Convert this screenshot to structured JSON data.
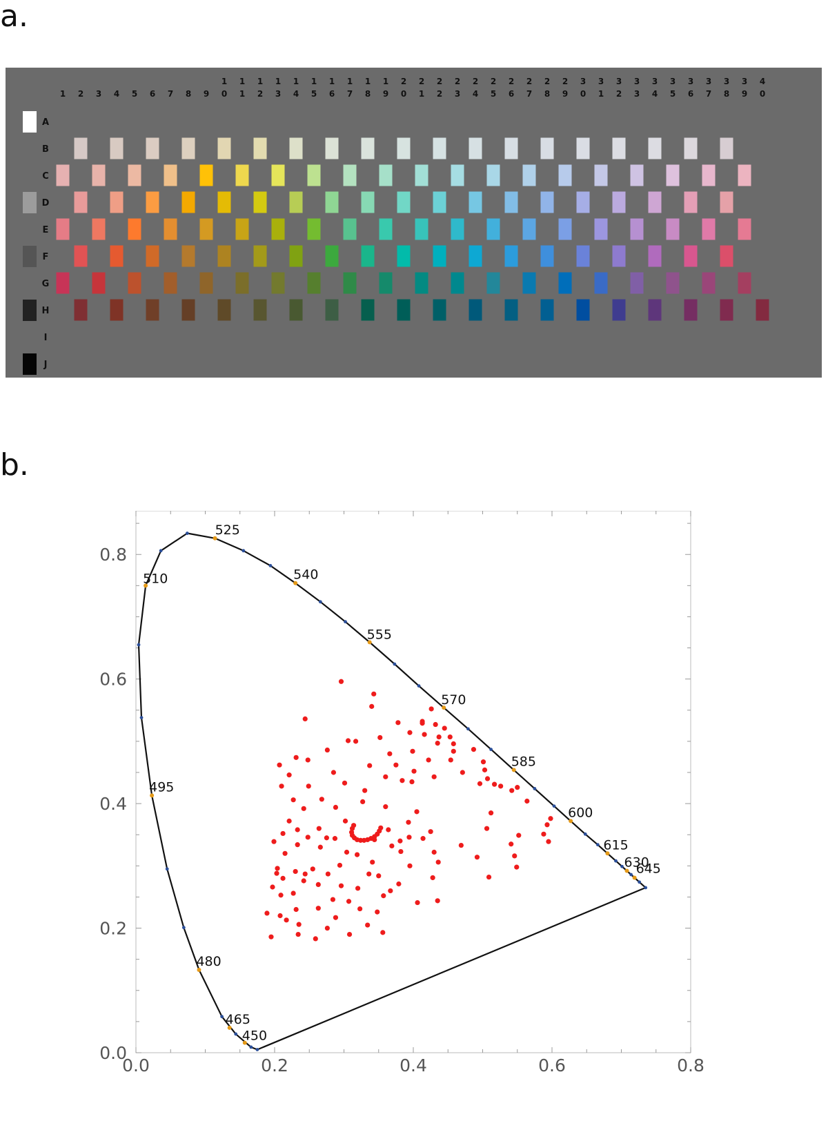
{
  "panel_a_label": "a.",
  "panel_b_label": "b.",
  "munsell_grid": {
    "row_labels": [
      "A",
      "B",
      "C",
      "D",
      "E",
      "F",
      "G",
      "H",
      "I",
      "J"
    ],
    "column_numbers": [
      "1",
      "2",
      "3",
      "4",
      "5",
      "6",
      "7",
      "8",
      "9",
      "10",
      "11",
      "12",
      "13",
      "14",
      "15",
      "16",
      "17",
      "18",
      "19",
      "20",
      "21",
      "22",
      "23",
      "24",
      "25",
      "26",
      "27",
      "28",
      "29",
      "30",
      "31",
      "32",
      "33",
      "34",
      "35",
      "36",
      "37",
      "38",
      "39",
      "40"
    ],
    "neutral_chips": {
      "A": "#ffffff",
      "D": "#9c9c9c",
      "F": "#555555",
      "H": "#222222",
      "J": "#050505"
    },
    "rows": {
      "B": {
        "start_col": 2,
        "colors": [
          "#d6c9c6",
          "#d8cac2",
          "#dbccc2",
          "#ddd0bf",
          "#e2d6b2",
          "#e3dcb0",
          "#dde0c9",
          "#dce2d6",
          "#dae3dc",
          "#d7e3e0",
          "#d6e2e3",
          "#d6e0e3",
          "#d7dee4",
          "#d8dde4",
          "#dadde4",
          "#dcdde3",
          "#dcdce2",
          "#dcd8dd",
          "#d7cdd2"
        ]
      },
      "C": {
        "start_col": 1,
        "colors": [
          "#e6b1b1",
          "#e8b3aa",
          "#ecb9a3",
          "#f0c08a",
          "#ffc107",
          "#eed84e",
          "#e5e55a",
          "#bde190",
          "#b4e2c0",
          "#a6e0c9",
          "#a2dfd6",
          "#a6dde3",
          "#a9d7e7",
          "#b0d1ea",
          "#b7cbeb",
          "#c4c8e7",
          "#cfc3e3",
          "#dec1dd",
          "#e8b7cd",
          "#ecb4c0"
        ]
      },
      "D": {
        "start_col": 2,
        "colors": [
          "#e89b9a",
          "#ef9e86",
          "#fb9c42",
          "#f4a901",
          "#e4bb05",
          "#d4ca11",
          "#b7cd55",
          "#8fd694",
          "#87d9b4",
          "#71d7c6",
          "#6cd1d6",
          "#76c7e3",
          "#82bde6",
          "#91b4e8",
          "#a6aee6",
          "#bbaadf",
          "#cea6d3",
          "#e49fb6",
          "#e5a1a8"
        ]
      },
      "E": {
        "start_col": 1,
        "colors": [
          "#e57c86",
          "#ee7861",
          "#fd7a2d",
          "#e38e30",
          "#d49a22",
          "#c8a416",
          "#a9b00c",
          "#74bc30",
          "#58c28f",
          "#39c9ad",
          "#38c3ba",
          "#2fb9cb",
          "#42b0dc",
          "#5ca6e3",
          "#7b9fe5",
          "#9c96df",
          "#b690d1",
          "#c88bc4",
          "#e07aa8",
          "#e57a93"
        ]
      },
      "F": {
        "start_col": 2,
        "colors": [
          "#e15354",
          "#e55a30",
          "#d06a28",
          "#b47a2d",
          "#ad8321",
          "#a39a1a",
          "#80a212",
          "#3ca93e",
          "#1ab68b",
          "#02bbaa",
          "#00b0be",
          "#0ea8d3",
          "#2c9cdc",
          "#3f8fdc",
          "#6a82d9",
          "#8e7bcf",
          "#b06bbd",
          "#d8578f",
          "#db4f6a"
        ]
      },
      "G": {
        "start_col": 1,
        "colors": [
          "#c73457",
          "#c6353b",
          "#bc522d",
          "#a25e2b",
          "#8f652a",
          "#7b6e2a",
          "#737a2e",
          "#567f2e",
          "#2f8a48",
          "#158a6b",
          "#048a82",
          "#00888e",
          "#23879a",
          "#0a7ab0",
          "#006eba",
          "#3a6bc6",
          "#805fa6",
          "#8f538c",
          "#9a4679",
          "#a43f60"
        ]
      },
      "H": {
        "start_col": 2,
        "colors": [
          "#7f2f33",
          "#7f3326",
          "#703f28",
          "#653f26",
          "#5f4a28",
          "#585630",
          "#495931",
          "#3d5e45",
          "#065f4e",
          "#005e58",
          "#005f67",
          "#00597a",
          "#045f82",
          "#015f92",
          "#014ea0",
          "#3f3c8f",
          "#5e367b",
          "#752e62",
          "#802b4f",
          "#832a40"
        ]
      }
    }
  },
  "chart_data": {
    "type": "scatter",
    "title": "",
    "xlabel": "",
    "ylabel": "",
    "xlim": [
      0.0,
      0.8
    ],
    "ylim": [
      0.0,
      0.9
    ],
    "x_ticks": [
      "0.0",
      "0.2",
      "0.4",
      "0.6",
      "0.8"
    ],
    "y_ticks": [
      "0.0",
      "0.2",
      "0.4",
      "0.6",
      "0.8"
    ],
    "grid": false,
    "spectral_locus": [
      [
        0.175,
        0.005
      ],
      [
        0.166,
        0.009
      ],
      [
        0.144,
        0.03
      ],
      [
        0.124,
        0.058
      ],
      [
        0.091,
        0.133
      ],
      [
        0.069,
        0.201
      ],
      [
        0.045,
        0.295
      ],
      [
        0.023,
        0.413
      ],
      [
        0.008,
        0.538
      ],
      [
        0.004,
        0.655
      ],
      [
        0.014,
        0.75
      ],
      [
        0.036,
        0.806
      ],
      [
        0.074,
        0.834
      ],
      [
        0.114,
        0.826
      ],
      [
        0.155,
        0.806
      ],
      [
        0.194,
        0.782
      ],
      [
        0.23,
        0.754
      ],
      [
        0.266,
        0.724
      ],
      [
        0.302,
        0.692
      ],
      [
        0.337,
        0.659
      ],
      [
        0.373,
        0.624
      ],
      [
        0.408,
        0.589
      ],
      [
        0.444,
        0.554
      ],
      [
        0.479,
        0.52
      ],
      [
        0.512,
        0.487
      ],
      [
        0.545,
        0.454
      ],
      [
        0.575,
        0.424
      ],
      [
        0.603,
        0.396
      ],
      [
        0.627,
        0.372
      ],
      [
        0.648,
        0.351
      ],
      [
        0.666,
        0.334
      ],
      [
        0.68,
        0.32
      ],
      [
        0.692,
        0.308
      ],
      [
        0.701,
        0.299
      ],
      [
        0.708,
        0.292
      ],
      [
        0.714,
        0.286
      ],
      [
        0.719,
        0.281
      ],
      [
        0.726,
        0.274
      ],
      [
        0.735,
        0.265
      ]
    ],
    "wavelength_labels": [
      {
        "label": "525",
        "x": 0.114,
        "y": 0.826
      },
      {
        "label": "540",
        "x": 0.23,
        "y": 0.754
      },
      {
        "label": "555",
        "x": 0.337,
        "y": 0.659
      },
      {
        "label": "570",
        "x": 0.444,
        "y": 0.554
      },
      {
        "label": "585",
        "x": 0.545,
        "y": 0.454
      },
      {
        "label": "600",
        "x": 0.627,
        "y": 0.372
      },
      {
        "label": "615",
        "x": 0.68,
        "y": 0.32
      },
      {
        "label": "630",
        "x": 0.708,
        "y": 0.292
      },
      {
        "label": "645",
        "x": 0.719,
        "y": 0.281
      },
      {
        "label": "510",
        "x": 0.014,
        "y": 0.75
      },
      {
        "label": "495",
        "x": 0.023,
        "y": 0.413
      },
      {
        "label": "480",
        "x": 0.091,
        "y": 0.133
      },
      {
        "label": "465",
        "x": 0.135,
        "y": 0.04
      },
      {
        "label": "450",
        "x": 0.157,
        "y": 0.016
      }
    ],
    "samples": [
      [
        0.296,
        0.596
      ],
      [
        0.343,
        0.576
      ],
      [
        0.34,
        0.556
      ],
      [
        0.244,
        0.536
      ],
      [
        0.426,
        0.552
      ],
      [
        0.378,
        0.53
      ],
      [
        0.413,
        0.532
      ],
      [
        0.413,
        0.529
      ],
      [
        0.432,
        0.527
      ],
      [
        0.445,
        0.521
      ],
      [
        0.395,
        0.514
      ],
      [
        0.416,
        0.511
      ],
      [
        0.437,
        0.507
      ],
      [
        0.453,
        0.507
      ],
      [
        0.458,
        0.496
      ],
      [
        0.435,
        0.497
      ],
      [
        0.352,
        0.506
      ],
      [
        0.306,
        0.501
      ],
      [
        0.317,
        0.5
      ],
      [
        0.276,
        0.486
      ],
      [
        0.399,
        0.484
      ],
      [
        0.458,
        0.484
      ],
      [
        0.487,
        0.487
      ],
      [
        0.366,
        0.48
      ],
      [
        0.248,
        0.47
      ],
      [
        0.231,
        0.474
      ],
      [
        0.422,
        0.47
      ],
      [
        0.454,
        0.47
      ],
      [
        0.207,
        0.462
      ],
      [
        0.375,
        0.462
      ],
      [
        0.337,
        0.461
      ],
      [
        0.501,
        0.467
      ],
      [
        0.503,
        0.454
      ],
      [
        0.401,
        0.452
      ],
      [
        0.285,
        0.45
      ],
      [
        0.471,
        0.45
      ],
      [
        0.507,
        0.44
      ],
      [
        0.43,
        0.443
      ],
      [
        0.221,
        0.446
      ],
      [
        0.36,
        0.443
      ],
      [
        0.384,
        0.437
      ],
      [
        0.398,
        0.435
      ],
      [
        0.496,
        0.432
      ],
      [
        0.517,
        0.431
      ],
      [
        0.526,
        0.428
      ],
      [
        0.55,
        0.426
      ],
      [
        0.301,
        0.433
      ],
      [
        0.249,
        0.428
      ],
      [
        0.21,
        0.428
      ],
      [
        0.33,
        0.421
      ],
      [
        0.542,
        0.421
      ],
      [
        0.564,
        0.404
      ],
      [
        0.268,
        0.407
      ],
      [
        0.227,
        0.406
      ],
      [
        0.327,
        0.403
      ],
      [
        0.36,
        0.395
      ],
      [
        0.242,
        0.392
      ],
      [
        0.288,
        0.394
      ],
      [
        0.405,
        0.387
      ],
      [
        0.512,
        0.385
      ],
      [
        0.598,
        0.376
      ],
      [
        0.221,
        0.372
      ],
      [
        0.593,
        0.366
      ],
      [
        0.302,
        0.372
      ],
      [
        0.393,
        0.37
      ],
      [
        0.506,
        0.36
      ],
      [
        0.264,
        0.36
      ],
      [
        0.233,
        0.358
      ],
      [
        0.212,
        0.352
      ],
      [
        0.364,
        0.358
      ],
      [
        0.425,
        0.355
      ],
      [
        0.588,
        0.351
      ],
      [
        0.552,
        0.349
      ],
      [
        0.414,
        0.344
      ],
      [
        0.248,
        0.346
      ],
      [
        0.275,
        0.345
      ],
      [
        0.287,
        0.344
      ],
      [
        0.344,
        0.342
      ],
      [
        0.381,
        0.34
      ],
      [
        0.394,
        0.346
      ],
      [
        0.199,
        0.339
      ],
      [
        0.595,
        0.339
      ],
      [
        0.233,
        0.334
      ],
      [
        0.266,
        0.33
      ],
      [
        0.369,
        0.332
      ],
      [
        0.469,
        0.333
      ],
      [
        0.541,
        0.335
      ],
      [
        0.304,
        0.322
      ],
      [
        0.319,
        0.318
      ],
      [
        0.215,
        0.32
      ],
      [
        0.382,
        0.323
      ],
      [
        0.43,
        0.322
      ],
      [
        0.492,
        0.314
      ],
      [
        0.546,
        0.316
      ],
      [
        0.341,
        0.306
      ],
      [
        0.294,
        0.301
      ],
      [
        0.255,
        0.295
      ],
      [
        0.204,
        0.296
      ],
      [
        0.23,
        0.291
      ],
      [
        0.203,
        0.288
      ],
      [
        0.395,
        0.3
      ],
      [
        0.436,
        0.306
      ],
      [
        0.549,
        0.298
      ],
      [
        0.244,
        0.287
      ],
      [
        0.277,
        0.287
      ],
      [
        0.336,
        0.287
      ],
      [
        0.35,
        0.284
      ],
      [
        0.212,
        0.28
      ],
      [
        0.428,
        0.281
      ],
      [
        0.509,
        0.282
      ],
      [
        0.242,
        0.276
      ],
      [
        0.263,
        0.27
      ],
      [
        0.296,
        0.268
      ],
      [
        0.379,
        0.271
      ],
      [
        0.197,
        0.266
      ],
      [
        0.227,
        0.256
      ],
      [
        0.32,
        0.264
      ],
      [
        0.367,
        0.26
      ],
      [
        0.209,
        0.253
      ],
      [
        0.307,
        0.243
      ],
      [
        0.357,
        0.252
      ],
      [
        0.284,
        0.246
      ],
      [
        0.406,
        0.241
      ],
      [
        0.435,
        0.244
      ],
      [
        0.231,
        0.23
      ],
      [
        0.263,
        0.232
      ],
      [
        0.323,
        0.231
      ],
      [
        0.348,
        0.226
      ],
      [
        0.208,
        0.22
      ],
      [
        0.189,
        0.224
      ],
      [
        0.288,
        0.217
      ],
      [
        0.217,
        0.213
      ],
      [
        0.235,
        0.206
      ],
      [
        0.276,
        0.2
      ],
      [
        0.334,
        0.205
      ],
      [
        0.195,
        0.186
      ],
      [
        0.234,
        0.19
      ],
      [
        0.259,
        0.183
      ],
      [
        0.308,
        0.19
      ],
      [
        0.356,
        0.193
      ],
      [
        0.314,
        0.365
      ],
      [
        0.312,
        0.36
      ],
      [
        0.311,
        0.354
      ],
      [
        0.312,
        0.349
      ],
      [
        0.315,
        0.345
      ],
      [
        0.319,
        0.342
      ],
      [
        0.324,
        0.341
      ],
      [
        0.329,
        0.341
      ],
      [
        0.334,
        0.342
      ],
      [
        0.339,
        0.344
      ],
      [
        0.344,
        0.347
      ],
      [
        0.348,
        0.351
      ],
      [
        0.351,
        0.356
      ],
      [
        0.353,
        0.361
      ]
    ]
  }
}
